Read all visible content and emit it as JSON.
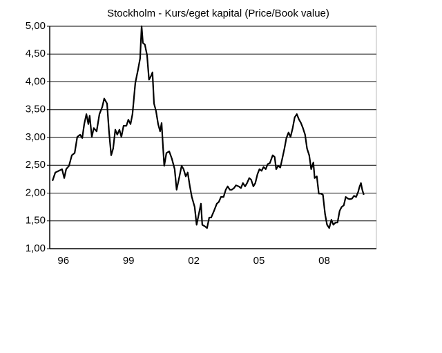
{
  "chart_data": {
    "type": "line",
    "title": "Stockholm - Kurs/eget kapital  (Price/Book value)",
    "xlim": [
      1996,
      2010.9
    ],
    "xticks": [
      {
        "value": 1996.5,
        "label": "96"
      },
      {
        "value": 1999.5,
        "label": "99"
      },
      {
        "value": 2002.5,
        "label": "02"
      },
      {
        "value": 2005.5,
        "label": "05"
      },
      {
        "value": 2008.5,
        "label": "08"
      }
    ],
    "ylim": [
      1,
      5
    ],
    "yticks": [
      {
        "value": 1,
        "label": "1,00"
      },
      {
        "value": 1.5,
        "label": "1,50"
      },
      {
        "value": 2,
        "label": "2,00"
      },
      {
        "value": 2.5,
        "label": "2,50"
      },
      {
        "value": 3,
        "label": "3,00"
      },
      {
        "value": 3.5,
        "label": "3,50"
      },
      {
        "value": 4,
        "label": "4,00"
      },
      {
        "value": 4.5,
        "label": "4,50"
      },
      {
        "value": 5,
        "label": "5,00"
      }
    ],
    "grid": true,
    "color": "#000000",
    "x": [
      1996.0,
      1996.13,
      1996.29,
      1996.44,
      1996.54,
      1996.63,
      1996.76,
      1996.89,
      1997.02,
      1997.14,
      1997.27,
      1997.37,
      1997.46,
      1997.56,
      1997.65,
      1997.71,
      1997.81,
      1997.9,
      1998.03,
      1998.16,
      1998.29,
      1998.38,
      1998.51,
      1998.6,
      1998.7,
      1998.79,
      1998.89,
      1998.98,
      1999.08,
      1999.17,
      1999.27,
      1999.4,
      1999.49,
      1999.59,
      1999.68,
      1999.81,
      1999.94,
      2000.03,
      2000.1,
      2000.16,
      2000.25,
      2000.35,
      2000.44,
      2000.54,
      2000.6,
      2000.67,
      2000.76,
      2000.86,
      2000.95,
      2001.02,
      2001.08,
      2001.14,
      2001.24,
      2001.37,
      2001.49,
      2001.62,
      2001.71,
      2001.84,
      2001.94,
      2002.03,
      2002.13,
      2002.22,
      2002.32,
      2002.41,
      2002.54,
      2002.63,
      2002.73,
      2002.83,
      2002.89,
      2003.02,
      2003.11,
      2003.21,
      2003.3,
      2003.43,
      2003.56,
      2003.65,
      2003.75,
      2003.87,
      2003.97,
      2004.06,
      2004.16,
      2004.25,
      2004.35,
      2004.44,
      2004.57,
      2004.67,
      2004.76,
      2004.86,
      2004.95,
      2005.05,
      2005.14,
      2005.24,
      2005.33,
      2005.43,
      2005.52,
      2005.62,
      2005.71,
      2005.81,
      2005.9,
      2006.0,
      2006.13,
      2006.22,
      2006.29,
      2006.38,
      2006.48,
      2006.57,
      2006.67,
      2006.76,
      2006.86,
      2006.95,
      2007.05,
      2007.14,
      2007.24,
      2007.33,
      2007.43,
      2007.52,
      2007.62,
      2007.71,
      2007.81,
      2007.9,
      2008.0,
      2008.06,
      2008.16,
      2008.25,
      2008.35,
      2008.44,
      2008.54,
      2008.63,
      2008.73,
      2008.83,
      2008.92,
      2009.02,
      2009.11,
      2009.21,
      2009.3,
      2009.4,
      2009.49,
      2009.59,
      2009.68,
      2009.78,
      2009.87,
      2009.97,
      2010.06,
      2010.13,
      2010.19,
      2010.25,
      2010.32
    ],
    "values": [
      2.22,
      2.37,
      2.4,
      2.43,
      2.27,
      2.43,
      2.49,
      2.68,
      2.72,
      3.01,
      3.05,
      2.99,
      3.24,
      3.42,
      3.24,
      3.39,
      3.01,
      3.17,
      3.11,
      3.42,
      3.55,
      3.7,
      3.61,
      3.11,
      2.68,
      2.8,
      3.14,
      3.05,
      3.14,
      3.01,
      3.21,
      3.21,
      3.32,
      3.24,
      3.42,
      3.98,
      4.23,
      4.42,
      5.0,
      4.7,
      4.67,
      4.48,
      4.04,
      4.11,
      4.17,
      3.61,
      3.48,
      3.24,
      3.11,
      3.26,
      2.86,
      2.49,
      2.72,
      2.75,
      2.62,
      2.43,
      2.06,
      2.3,
      2.49,
      2.43,
      2.3,
      2.37,
      2.12,
      1.93,
      1.75,
      1.43,
      1.62,
      1.81,
      1.43,
      1.4,
      1.37,
      1.56,
      1.56,
      1.68,
      1.81,
      1.84,
      1.93,
      1.93,
      2.06,
      2.12,
      2.06,
      2.06,
      2.09,
      2.14,
      2.12,
      2.09,
      2.18,
      2.12,
      2.18,
      2.27,
      2.24,
      2.12,
      2.18,
      2.34,
      2.43,
      2.4,
      2.47,
      2.43,
      2.52,
      2.54,
      2.68,
      2.65,
      2.43,
      2.49,
      2.46,
      2.62,
      2.8,
      2.99,
      3.09,
      3.01,
      3.17,
      3.36,
      3.42,
      3.33,
      3.26,
      3.17,
      3.05,
      2.8,
      2.68,
      2.43,
      2.55,
      2.27,
      2.3,
      1.99,
      1.99,
      1.97,
      1.62,
      1.43,
      1.37,
      1.52,
      1.43,
      1.47,
      1.47,
      1.68,
      1.75,
      1.78,
      1.93,
      1.9,
      1.89,
      1.9,
      1.95,
      1.93,
      2.02,
      2.12,
      2.18,
      2.06,
      1.97
    ]
  }
}
